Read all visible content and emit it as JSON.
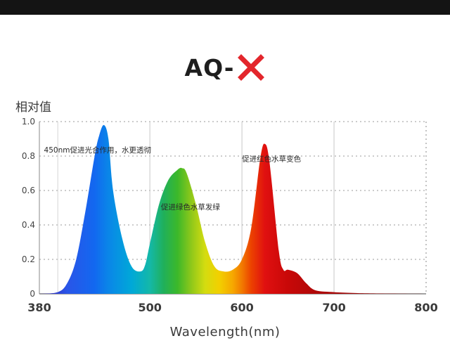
{
  "header": {
    "brand_text": "AQ-",
    "brand_mark_icon": "red-x-icon",
    "brand_mark_color": "#e3262c"
  },
  "chart_data": {
    "type": "area",
    "title": "AQ- X",
    "ylabel": "相对值",
    "xlabel": "Wavelength(nm)",
    "xlim": [
      380,
      800
    ],
    "ylim": [
      0,
      1.0
    ],
    "x_ticks": [
      380,
      500,
      600,
      700,
      800
    ],
    "y_ticks": [
      0,
      0.2,
      0.4,
      0.6,
      0.8,
      1.0
    ],
    "y_tick_labels": [
      "0",
      "0.2",
      "0.4",
      "0.6",
      "0.8",
      "1.0"
    ],
    "grid": true,
    "series": [
      {
        "x": [
          380,
          400,
          410,
          420,
          430,
          440,
          445,
          450,
          455,
          460,
          470,
          480,
          490,
          495,
          500,
          510,
          520,
          530,
          535,
          540,
          550,
          560,
          570,
          580,
          590,
          600,
          610,
          620,
          625,
          630,
          640,
          645,
          650,
          660,
          670,
          680,
          700,
          720,
          750,
          800
        ],
        "y": [
          0.0,
          0.01,
          0.06,
          0.2,
          0.48,
          0.8,
          0.92,
          0.98,
          0.9,
          0.6,
          0.32,
          0.16,
          0.13,
          0.17,
          0.29,
          0.52,
          0.66,
          0.72,
          0.73,
          0.7,
          0.52,
          0.3,
          0.16,
          0.13,
          0.14,
          0.2,
          0.38,
          0.79,
          0.87,
          0.76,
          0.25,
          0.14,
          0.14,
          0.12,
          0.06,
          0.02,
          0.01,
          0.005,
          0.002,
          0.0
        ]
      }
    ],
    "annotations": [
      {
        "text": "450nm促进光合作用，水更透彻",
        "x": 385,
        "y": 0.82
      },
      {
        "text": "促进绿色水草发绿",
        "x": 512,
        "y": 0.49
      },
      {
        "text": "促进红色水草变色",
        "x": 600,
        "y": 0.77
      }
    ]
  }
}
